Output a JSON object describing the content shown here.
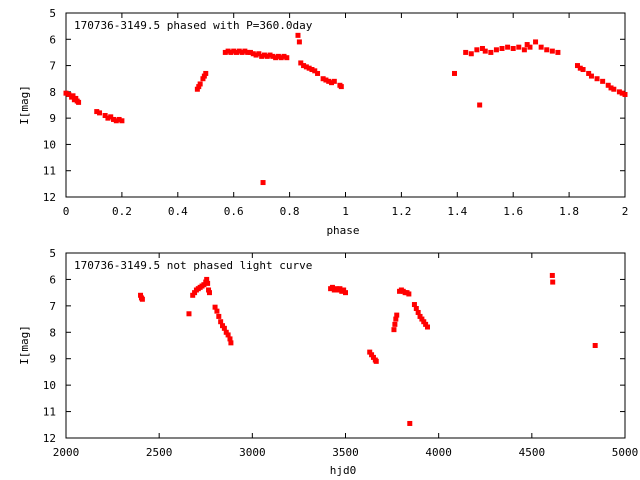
{
  "chart_data": [
    {
      "type": "scatter",
      "title": "170736-3149.5 phased with P=360.0day",
      "xlabel": "phase",
      "ylabel": "I[mag]",
      "xlim": [
        0,
        2
      ],
      "ylim": [
        5,
        12
      ],
      "y_inverted": true,
      "grid": false,
      "marker_color": "#ff0000",
      "xticks": [
        0,
        0.2,
        0.4,
        0.6,
        0.8,
        1,
        1.2,
        1.4,
        1.6,
        1.8,
        2
      ],
      "xtick_labels": [
        "0",
        "0.2",
        "0.4",
        "0.6",
        "0.8",
        "1",
        "1.2",
        "1.4",
        "1.6",
        "1.8",
        "2"
      ],
      "yticks": [
        5,
        6,
        7,
        8,
        9,
        10,
        11,
        12
      ],
      "ytick_labels": [
        "5",
        "6",
        "7",
        "8",
        "9",
        "10",
        "11",
        "12"
      ],
      "points": [
        [
          0.0,
          8.05
        ],
        [
          0.01,
          8.1
        ],
        [
          0.02,
          8.2
        ],
        [
          0.025,
          8.15
        ],
        [
          0.03,
          8.3
        ],
        [
          0.035,
          8.25
        ],
        [
          0.04,
          8.35
        ],
        [
          0.045,
          8.4
        ],
        [
          0.11,
          8.75
        ],
        [
          0.12,
          8.8
        ],
        [
          0.14,
          8.9
        ],
        [
          0.15,
          9.0
        ],
        [
          0.16,
          8.95
        ],
        [
          0.17,
          9.05
        ],
        [
          0.18,
          9.1
        ],
        [
          0.19,
          9.05
        ],
        [
          0.2,
          9.1
        ],
        [
          0.47,
          7.9
        ],
        [
          0.475,
          7.8
        ],
        [
          0.48,
          7.7
        ],
        [
          0.49,
          7.5
        ],
        [
          0.495,
          7.4
        ],
        [
          0.5,
          7.3
        ],
        [
          0.57,
          6.5
        ],
        [
          0.58,
          6.45
        ],
        [
          0.59,
          6.5
        ],
        [
          0.6,
          6.45
        ],
        [
          0.61,
          6.5
        ],
        [
          0.62,
          6.45
        ],
        [
          0.63,
          6.5
        ],
        [
          0.64,
          6.45
        ],
        [
          0.65,
          6.5
        ],
        [
          0.66,
          6.5
        ],
        [
          0.67,
          6.55
        ],
        [
          0.68,
          6.6
        ],
        [
          0.69,
          6.55
        ],
        [
          0.7,
          6.65
        ],
        [
          0.705,
          11.45
        ],
        [
          0.71,
          6.6
        ],
        [
          0.72,
          6.65
        ],
        [
          0.73,
          6.6
        ],
        [
          0.74,
          6.65
        ],
        [
          0.75,
          6.7
        ],
        [
          0.76,
          6.65
        ],
        [
          0.77,
          6.7
        ],
        [
          0.78,
          6.65
        ],
        [
          0.79,
          6.7
        ],
        [
          0.83,
          5.85
        ],
        [
          0.835,
          6.1
        ],
        [
          0.84,
          6.9
        ],
        [
          0.85,
          7.0
        ],
        [
          0.86,
          7.05
        ],
        [
          0.87,
          7.1
        ],
        [
          0.88,
          7.15
        ],
        [
          0.89,
          7.2
        ],
        [
          0.9,
          7.3
        ],
        [
          0.92,
          7.5
        ],
        [
          0.93,
          7.55
        ],
        [
          0.94,
          7.6
        ],
        [
          0.95,
          7.65
        ],
        [
          0.96,
          7.6
        ],
        [
          0.98,
          7.75
        ],
        [
          0.985,
          7.8
        ],
        [
          1.39,
          7.3
        ],
        [
          1.43,
          6.5
        ],
        [
          1.45,
          6.55
        ],
        [
          1.47,
          6.4
        ],
        [
          1.48,
          8.5
        ],
        [
          1.49,
          6.35
        ],
        [
          1.5,
          6.45
        ],
        [
          1.52,
          6.5
        ],
        [
          1.54,
          6.4
        ],
        [
          1.56,
          6.35
        ],
        [
          1.58,
          6.3
        ],
        [
          1.6,
          6.35
        ],
        [
          1.62,
          6.3
        ],
        [
          1.64,
          6.4
        ],
        [
          1.65,
          6.2
        ],
        [
          1.66,
          6.3
        ],
        [
          1.68,
          6.1
        ],
        [
          1.7,
          6.3
        ],
        [
          1.72,
          6.4
        ],
        [
          1.74,
          6.45
        ],
        [
          1.76,
          6.5
        ],
        [
          1.83,
          7.0
        ],
        [
          1.84,
          7.1
        ],
        [
          1.85,
          7.15
        ],
        [
          1.87,
          7.3
        ],
        [
          1.88,
          7.4
        ],
        [
          1.9,
          7.5
        ],
        [
          1.92,
          7.6
        ],
        [
          1.94,
          7.75
        ],
        [
          1.95,
          7.85
        ],
        [
          1.96,
          7.9
        ],
        [
          1.98,
          8.0
        ],
        [
          1.99,
          8.05
        ],
        [
          2.0,
          8.1
        ]
      ]
    },
    {
      "type": "scatter",
      "title": "170736-3149.5 not phased light curve",
      "xlabel": "hjd0",
      "ylabel": "I[mag]",
      "xlim": [
        2000,
        5000
      ],
      "ylim": [
        5,
        12
      ],
      "y_inverted": true,
      "grid": false,
      "marker_color": "#ff0000",
      "xticks": [
        2000,
        2500,
        3000,
        3500,
        4000,
        4500,
        5000
      ],
      "xtick_labels": [
        "2000",
        "2500",
        "3000",
        "3500",
        "4000",
        "4500",
        "5000"
      ],
      "yticks": [
        5,
        6,
        7,
        8,
        9,
        10,
        11,
        12
      ],
      "ytick_labels": [
        "5",
        "6",
        "7",
        "8",
        "9",
        "10",
        "11",
        "12"
      ],
      "points": [
        [
          2400,
          6.6
        ],
        [
          2405,
          6.7
        ],
        [
          2410,
          6.75
        ],
        [
          2660,
          7.3
        ],
        [
          2680,
          6.6
        ],
        [
          2690,
          6.5
        ],
        [
          2700,
          6.4
        ],
        [
          2710,
          6.35
        ],
        [
          2720,
          6.3
        ],
        [
          2730,
          6.25
        ],
        [
          2740,
          6.2
        ],
        [
          2750,
          6.1
        ],
        [
          2755,
          6.0
        ],
        [
          2760,
          6.15
        ],
        [
          2765,
          6.4
        ],
        [
          2770,
          6.5
        ],
        [
          2800,
          7.05
        ],
        [
          2810,
          7.2
        ],
        [
          2820,
          7.4
        ],
        [
          2830,
          7.6
        ],
        [
          2840,
          7.75
        ],
        [
          2850,
          7.85
        ],
        [
          2860,
          8.0
        ],
        [
          2870,
          8.1
        ],
        [
          2880,
          8.25
        ],
        [
          2885,
          8.4
        ],
        [
          3420,
          6.35
        ],
        [
          3430,
          6.3
        ],
        [
          3440,
          6.4
        ],
        [
          3450,
          6.35
        ],
        [
          3460,
          6.4
        ],
        [
          3470,
          6.35
        ],
        [
          3480,
          6.45
        ],
        [
          3490,
          6.4
        ],
        [
          3500,
          6.5
        ],
        [
          3630,
          8.75
        ],
        [
          3640,
          8.85
        ],
        [
          3650,
          8.95
        ],
        [
          3660,
          9.05
        ],
        [
          3665,
          9.1
        ],
        [
          3760,
          7.9
        ],
        [
          3765,
          7.7
        ],
        [
          3770,
          7.5
        ],
        [
          3775,
          7.35
        ],
        [
          3790,
          6.45
        ],
        [
          3800,
          6.4
        ],
        [
          3810,
          6.45
        ],
        [
          3820,
          6.5
        ],
        [
          3830,
          6.5
        ],
        [
          3840,
          6.55
        ],
        [
          3845,
          11.45
        ],
        [
          3870,
          6.95
        ],
        [
          3880,
          7.1
        ],
        [
          3890,
          7.25
        ],
        [
          3900,
          7.4
        ],
        [
          3910,
          7.5
        ],
        [
          3920,
          7.6
        ],
        [
          3930,
          7.7
        ],
        [
          3940,
          7.8
        ],
        [
          4610,
          5.85
        ],
        [
          4612,
          6.1
        ],
        [
          4840,
          8.5
        ]
      ]
    }
  ]
}
